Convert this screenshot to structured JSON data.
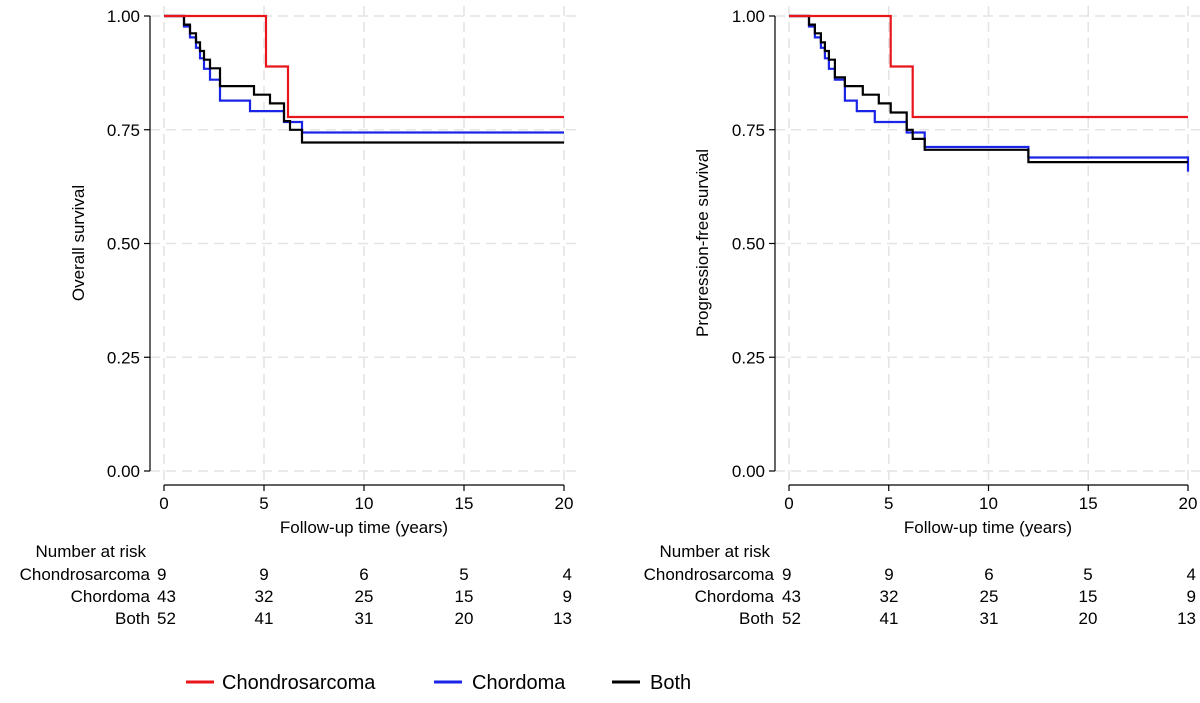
{
  "colors": {
    "chondrosarcoma": "#e8151b",
    "chordoma": "#1a24e6",
    "both": "#000000",
    "grid": "#e4e4e4",
    "axis": "#000000"
  },
  "chart_data": [
    {
      "type": "line",
      "subtype": "kaplan-meier-step",
      "ylabel": "Overall survival",
      "xlabel": "Follow-up time (years)",
      "xlim": [
        0,
        20
      ],
      "ylim": [
        0,
        1
      ],
      "xticks": [
        "0",
        "5",
        "10",
        "15",
        "20"
      ],
      "yticks": [
        "0.00",
        "0.25",
        "0.50",
        "0.75",
        "1.00"
      ],
      "series": [
        {
          "name": "Chondrosarcoma",
          "color_key": "chondrosarcoma",
          "x": [
            0,
            5.1,
            6.2,
            20
          ],
          "y": [
            1.0,
            0.889,
            0.778,
            0.778
          ]
        },
        {
          "name": "Chordoma",
          "color_key": "chordoma",
          "x": [
            0,
            1.0,
            1.3,
            1.6,
            1.8,
            2.0,
            2.3,
            2.8,
            4.3,
            6.0,
            6.9,
            20
          ],
          "y": [
            1.0,
            0.977,
            0.953,
            0.93,
            0.907,
            0.884,
            0.86,
            0.814,
            0.791,
            0.767,
            0.744,
            0.744
          ]
        }
      ],
      "risk_table": {
        "title": "Number at risk",
        "rows": [
          {
            "label": "Chondrosarcoma",
            "values": [
              "9",
              "9",
              "6",
              "5",
              "4"
            ]
          },
          {
            "label": "Chordoma",
            "values": [
              "43",
              "32",
              "25",
              "15",
              "9"
            ]
          },
          {
            "label": "Both",
            "values": [
              "52",
              "41",
              "31",
              "20",
              "13"
            ]
          }
        ]
      }
    },
    {
      "type": "line",
      "subtype": "kaplan-meier-step",
      "ylabel": "Progression-free survival",
      "xlabel": "Follow-up time (years)",
      "xlim": [
        0,
        20
      ],
      "ylim": [
        0,
        1
      ],
      "xticks": [
        "0",
        "5",
        "10",
        "15",
        "20"
      ],
      "yticks": [
        "0.00",
        "0.25",
        "0.50",
        "0.75",
        "1.00"
      ],
      "series": [
        {
          "name": "Chondrosarcoma",
          "color_key": "chondrosarcoma",
          "x": [
            0,
            5.1,
            6.2,
            20
          ],
          "y": [
            1.0,
            0.889,
            0.778,
            0.778
          ]
        },
        {
          "name": "Chordoma",
          "color_key": "chordoma",
          "x": [
            0,
            1.0,
            1.3,
            1.6,
            1.8,
            2.0,
            2.3,
            2.8,
            3.4,
            4.3,
            5.9,
            6.8,
            12.0,
            20
          ],
          "y": [
            1.0,
            0.977,
            0.953,
            0.93,
            0.907,
            0.884,
            0.86,
            0.814,
            0.791,
            0.767,
            0.744,
            0.712,
            0.689,
            0.658
          ]
        }
      ],
      "risk_table": {
        "title": "Number at risk",
        "rows": [
          {
            "label": "Chondrosarcoma",
            "values": [
              "9",
              "9",
              "6",
              "5",
              "4"
            ]
          },
          {
            "label": "Chordoma",
            "values": [
              "43",
              "32",
              "25",
              "15",
              "9"
            ]
          },
          {
            "label": "Both",
            "values": [
              "52",
              "41",
              "31",
              "20",
              "13"
            ]
          }
        ]
      }
    }
  ],
  "both_series": [
    {
      "x": [
        0,
        1.0,
        1.3,
        1.6,
        1.8,
        2.0,
        2.3,
        2.8,
        4.5,
        5.3,
        6.0,
        6.3,
        6.9,
        20
      ],
      "y": [
        1.0,
        0.981,
        0.962,
        0.942,
        0.923,
        0.904,
        0.885,
        0.846,
        0.827,
        0.808,
        0.769,
        0.75,
        0.722,
        0.722
      ]
    },
    {
      "x": [
        0,
        1.0,
        1.3,
        1.6,
        1.8,
        2.0,
        2.3,
        2.8,
        3.7,
        4.5,
        5.1,
        5.9,
        6.2,
        6.8,
        12.0,
        20
      ],
      "y": [
        1.0,
        0.981,
        0.962,
        0.942,
        0.923,
        0.904,
        0.865,
        0.846,
        0.827,
        0.808,
        0.788,
        0.75,
        0.73,
        0.706,
        0.679,
        0.679
      ]
    }
  ],
  "legend": {
    "items": [
      {
        "label": "Chondrosarcoma",
        "color_key": "chondrosarcoma"
      },
      {
        "label": "Chordoma",
        "color_key": "chordoma"
      },
      {
        "label": "Both",
        "color_key": "both"
      }
    ]
  }
}
